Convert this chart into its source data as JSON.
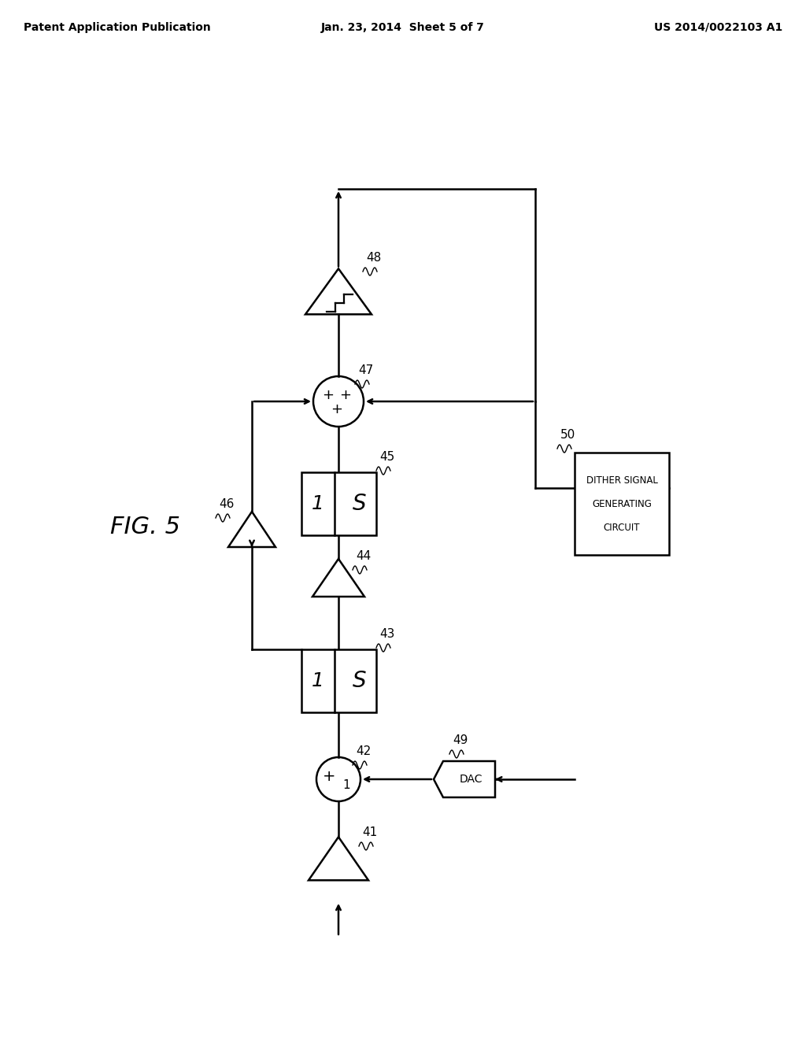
{
  "title_left": "Patent Application Publication",
  "title_center": "Jan. 23, 2014  Sheet 5 of 7",
  "title_right": "US 2014/0022103 A1",
  "fig_label": "FIG. 5",
  "background": "#ffffff",
  "line_color": "#000000",
  "fig_width": 10.24,
  "fig_height": 13.2
}
